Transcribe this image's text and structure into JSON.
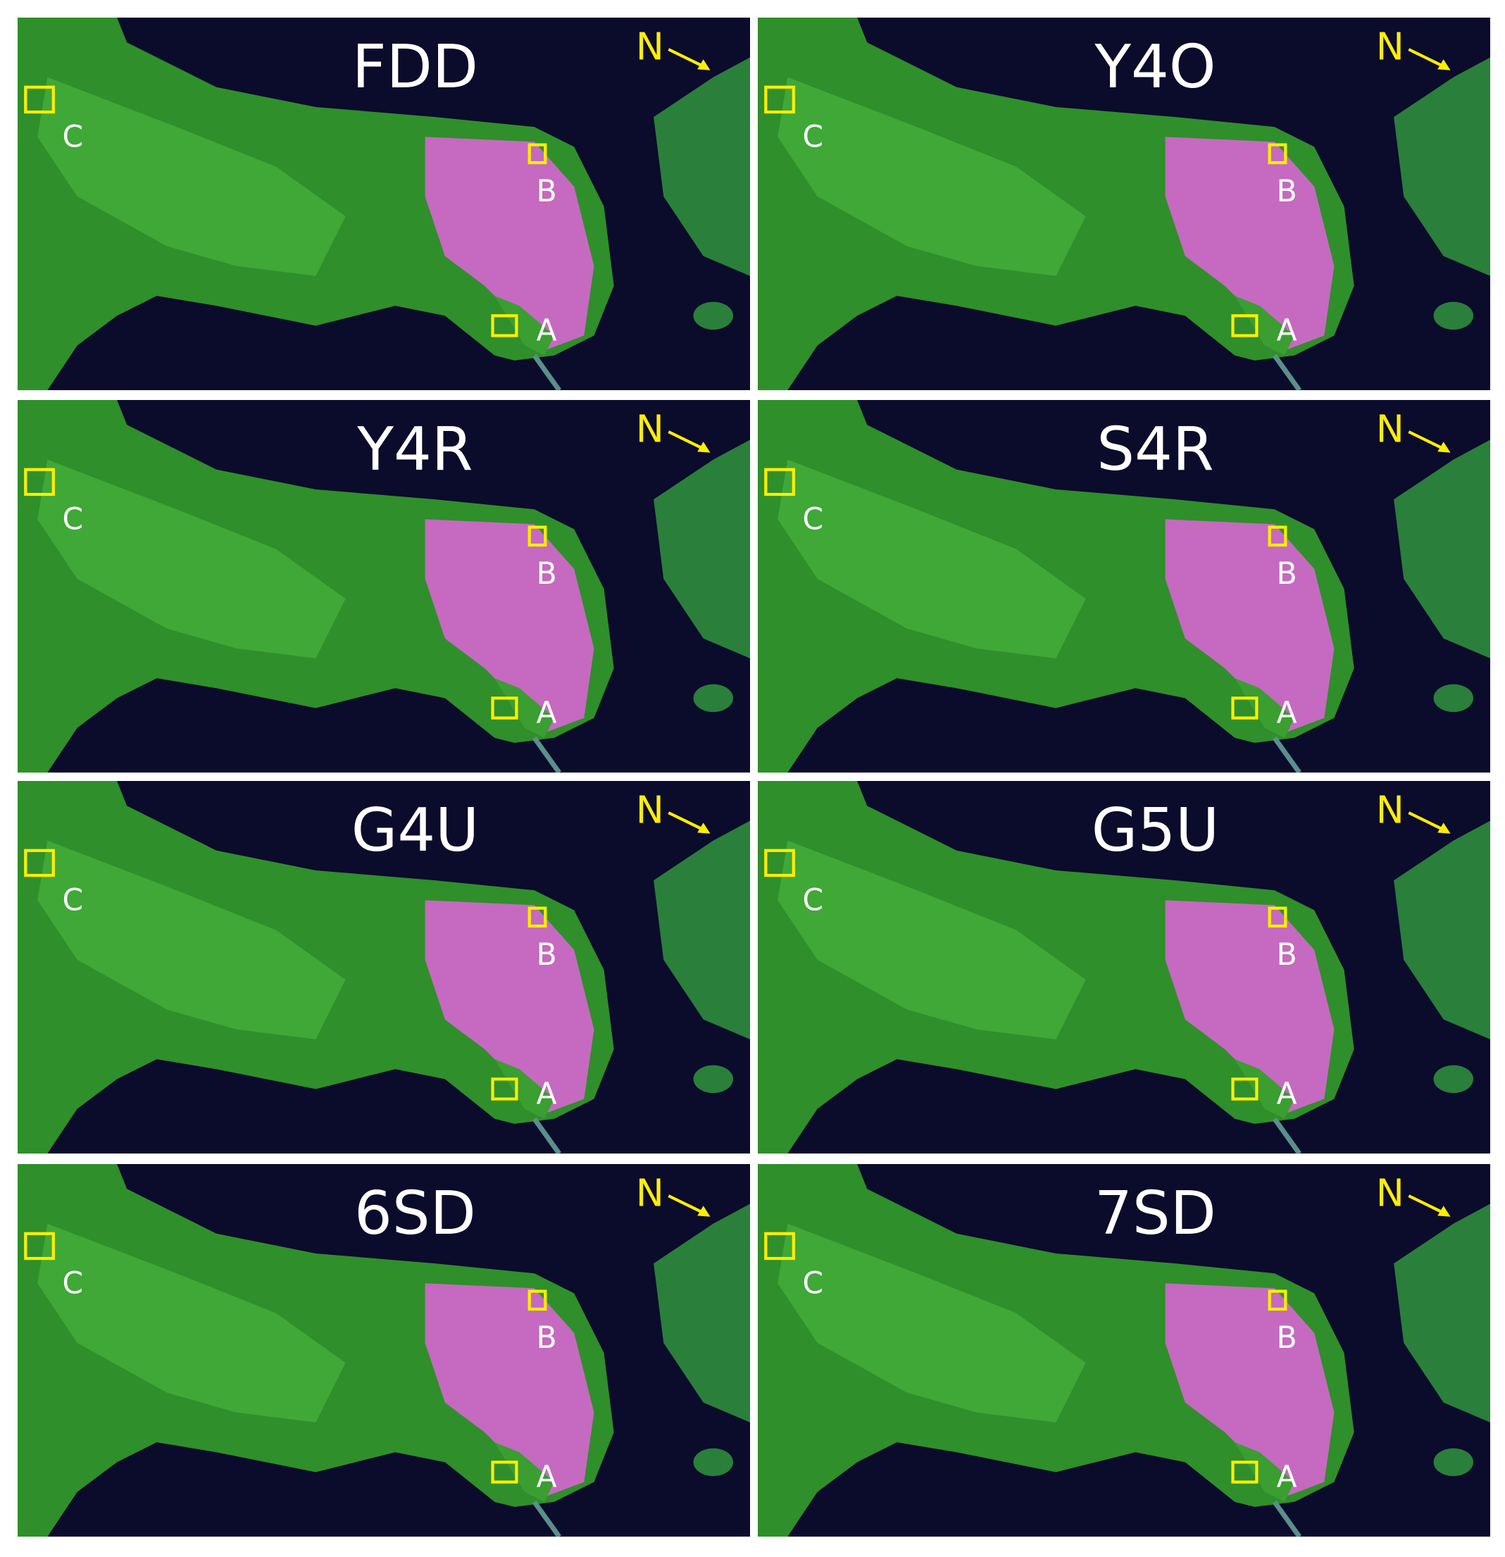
{
  "panels": [
    {
      "title": "FDD",
      "north": "N",
      "markers": [
        "A",
        "B",
        "C"
      ]
    },
    {
      "title": "Y4O",
      "north": "N",
      "markers": [
        "A",
        "B",
        "C"
      ]
    },
    {
      "title": "Y4R",
      "north": "N",
      "markers": [
        "A",
        "B",
        "C"
      ]
    },
    {
      "title": "S4R",
      "north": "N",
      "markers": [
        "A",
        "B",
        "C"
      ]
    },
    {
      "title": "G4U",
      "north": "N",
      "markers": [
        "A",
        "B",
        "C"
      ]
    },
    {
      "title": "G5U",
      "north": "N",
      "markers": [
        "A",
        "B",
        "C"
      ]
    },
    {
      "title": "6SD",
      "north": "N",
      "markers": [
        "A",
        "B",
        "C"
      ]
    },
    {
      "title": "7SD",
      "north": "N",
      "markers": [
        "A",
        "B",
        "C"
      ]
    }
  ]
}
